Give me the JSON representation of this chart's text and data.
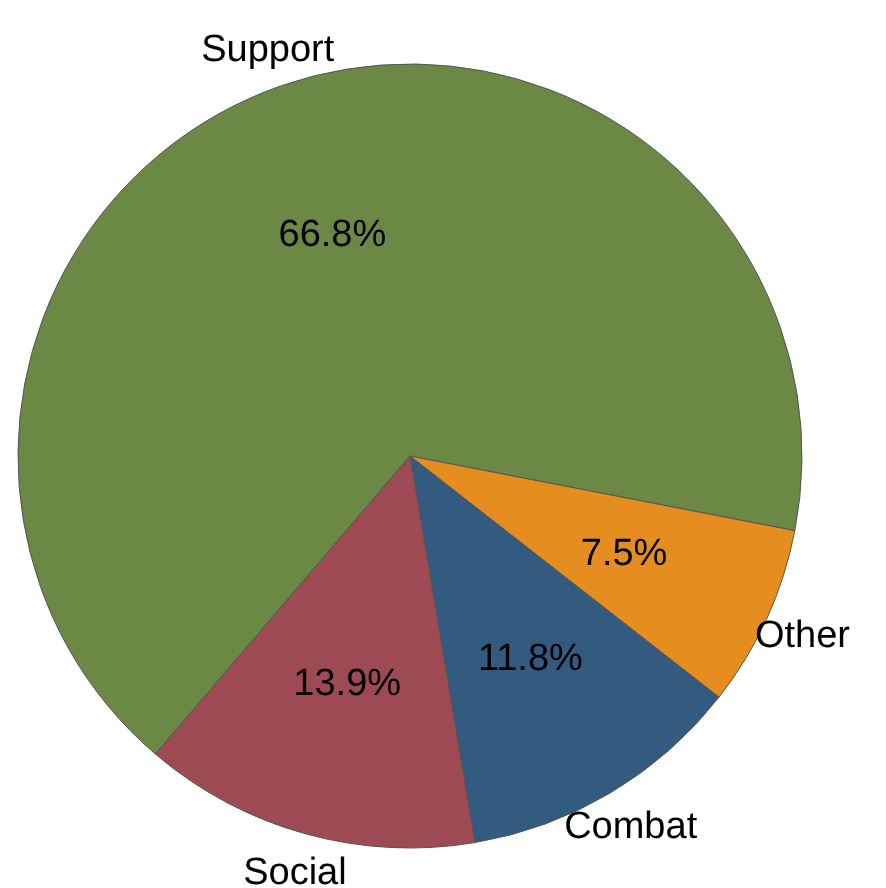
{
  "chart_data": {
    "type": "pie",
    "categories": [
      "Support",
      "Other",
      "Combat",
      "Social"
    ],
    "values": [
      66.8,
      7.5,
      11.8,
      13.9
    ],
    "colors": [
      "#6b8845",
      "#e58e1f",
      "#335b80",
      "#9e4a55"
    ],
    "value_labels": [
      "66.8%",
      "7.5%",
      "11.8%",
      "13.9%"
    ]
  }
}
